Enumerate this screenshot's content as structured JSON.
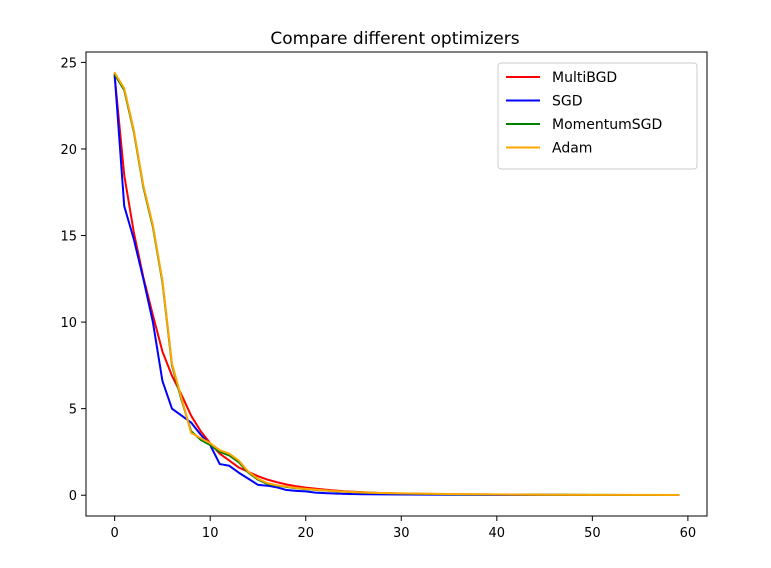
{
  "chart_data": {
    "type": "line",
    "title": "Compare different optimizers",
    "xlabel": "",
    "ylabel": "",
    "xlim": [
      -3,
      62
    ],
    "ylim": [
      -1.2,
      25.6
    ],
    "xticks": [
      0,
      10,
      20,
      30,
      40,
      50,
      60
    ],
    "yticks": [
      0,
      5,
      10,
      15,
      20,
      25
    ],
    "grid": false,
    "legend_position": "top-right",
    "series": [
      {
        "name": "MultiBGD",
        "color": "#ff0000",
        "x": [
          0,
          1,
          2,
          3,
          4,
          5,
          6,
          7,
          8,
          9,
          10,
          11,
          12,
          13,
          14,
          15,
          16,
          17,
          18,
          19,
          20,
          22,
          24,
          26,
          28,
          30,
          35,
          40,
          45,
          50,
          55,
          59
        ],
        "y": [
          24.2,
          18.5,
          15.2,
          12.6,
          10.4,
          8.3,
          6.9,
          5.8,
          4.6,
          3.7,
          3.0,
          2.4,
          2.0,
          1.6,
          1.35,
          1.1,
          0.9,
          0.75,
          0.62,
          0.52,
          0.44,
          0.32,
          0.23,
          0.17,
          0.12,
          0.09,
          0.05,
          0.03,
          0.02,
          0.015,
          0.01,
          0.01
        ]
      },
      {
        "name": "SGD",
        "color": "#0000ff",
        "x": [
          0,
          1,
          2,
          3,
          4,
          5,
          6,
          7,
          8,
          9,
          10,
          11,
          12,
          13,
          14,
          15,
          16,
          17,
          18,
          19,
          20,
          21,
          22,
          24,
          26,
          28,
          30,
          35,
          40,
          45,
          50,
          55,
          59
        ],
        "y": [
          24.3,
          16.7,
          14.8,
          12.5,
          10.0,
          6.6,
          5.0,
          4.6,
          4.2,
          3.5,
          2.9,
          1.8,
          1.7,
          1.3,
          0.95,
          0.6,
          0.55,
          0.45,
          0.3,
          0.25,
          0.22,
          0.15,
          0.12,
          0.08,
          0.06,
          0.05,
          0.04,
          0.03,
          0.02,
          0.02,
          0.01,
          0.01,
          0.01
        ]
      },
      {
        "name": "MomentumSGD",
        "color": "#008000",
        "x": [
          0,
          1,
          2,
          3,
          4,
          5,
          6,
          7,
          8,
          9,
          10,
          11,
          12,
          13,
          14,
          15,
          16,
          17,
          18,
          19,
          20,
          22,
          24,
          26,
          28,
          30,
          35,
          40,
          45,
          50,
          55,
          59
        ],
        "y": [
          24.3,
          23.4,
          21.0,
          17.8,
          15.5,
          12.3,
          7.5,
          5.5,
          3.7,
          3.2,
          2.9,
          2.5,
          2.3,
          1.9,
          1.3,
          0.9,
          0.65,
          0.55,
          0.48,
          0.4,
          0.35,
          0.27,
          0.2,
          0.15,
          0.12,
          0.1,
          0.06,
          0.04,
          0.03,
          0.02,
          0.01,
          0.01
        ]
      },
      {
        "name": "Adam",
        "color": "#ffa500",
        "x": [
          0,
          1,
          2,
          3,
          4,
          5,
          6,
          7,
          8,
          9,
          10,
          11,
          12,
          13,
          14,
          15,
          16,
          17,
          18,
          19,
          20,
          22,
          24,
          26,
          28,
          30,
          35,
          40,
          45,
          50,
          55,
          59
        ],
        "y": [
          24.4,
          23.5,
          21.1,
          17.9,
          15.6,
          12.4,
          7.6,
          5.6,
          3.6,
          3.3,
          3.0,
          2.6,
          2.4,
          2.0,
          1.35,
          0.95,
          0.7,
          0.57,
          0.5,
          0.42,
          0.37,
          0.28,
          0.21,
          0.16,
          0.13,
          0.11,
          0.07,
          0.05,
          0.03,
          0.02,
          0.02,
          0.01
        ]
      }
    ]
  }
}
